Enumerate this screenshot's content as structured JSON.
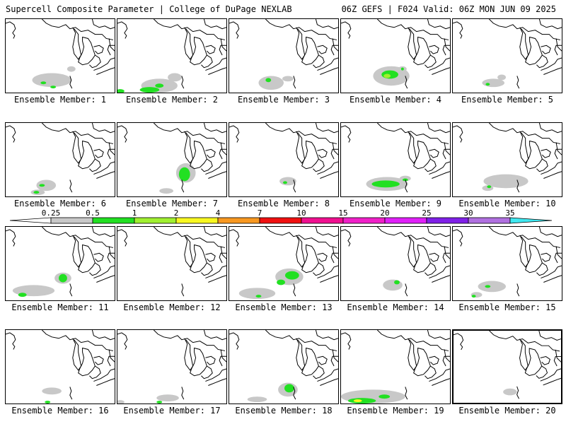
{
  "header": {
    "left_title": "Supercell Composite Parameter | College of DuPage NEXLAB",
    "right_title": "06Z GEFS | F024 Valid: 06Z MON JUN 09 2025"
  },
  "panels": [
    {
      "label": "Ensemble Member: 1"
    },
    {
      "label": "Ensemble Member: 2"
    },
    {
      "label": "Ensemble Member: 3"
    },
    {
      "label": "Ensemble Member: 4"
    },
    {
      "label": "Ensemble Member: 5"
    },
    {
      "label": "Ensemble Member: 6"
    },
    {
      "label": "Ensemble Member: 7"
    },
    {
      "label": "Ensemble Member: 8"
    },
    {
      "label": "Ensemble Member: 9"
    },
    {
      "label": "Ensemble Member: 10"
    },
    {
      "label": "Ensemble Member: 11"
    },
    {
      "label": "Ensemble Member: 12"
    },
    {
      "label": "Ensemble Member: 13"
    },
    {
      "label": "Ensemble Member: 14"
    },
    {
      "label": "Ensemble Member: 15"
    },
    {
      "label": "Ensemble Member: 16"
    },
    {
      "label": "Ensemble Member: 17"
    },
    {
      "label": "Ensemble Member: 18"
    },
    {
      "label": "Ensemble Member: 19"
    },
    {
      "label": "Ensemble Member: 20",
      "selected": true
    }
  ],
  "colorbar": {
    "ticks": [
      "0.25",
      "0.5",
      "1",
      "2",
      "4",
      "7",
      "10",
      "15",
      "20",
      "25",
      "30",
      "35"
    ],
    "colors": [
      "#c8c8c8",
      "#22e022",
      "#a0f030",
      "#f8f820",
      "#f89820",
      "#f01010",
      "#f01090",
      "#f020c8",
      "#e020f8",
      "#8020e8",
      "#b070e0",
      "#40e8f0"
    ]
  },
  "colors": {
    "light_gray": "#c8c8c8",
    "green": "#22e022",
    "light_green": "#a0f030",
    "yellow": "#f8f820"
  }
}
